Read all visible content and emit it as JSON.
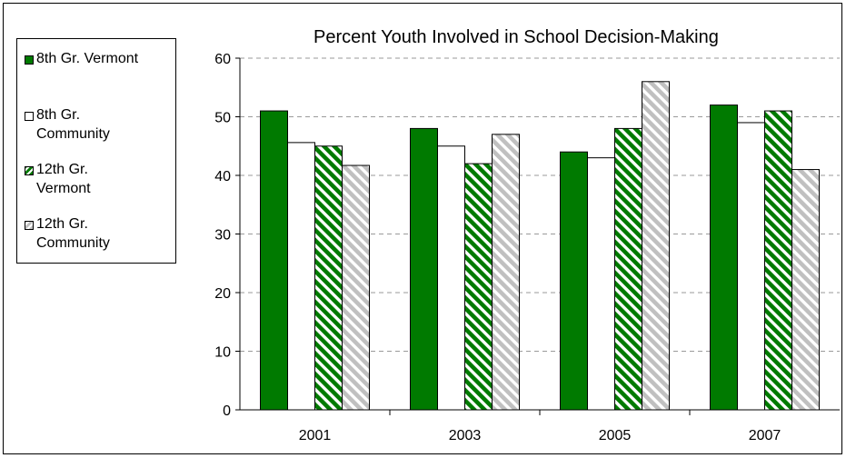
{
  "chart_data": {
    "type": "bar",
    "title": "Percent Youth Involved in School Decision-Making",
    "xlabel": "",
    "ylabel": "",
    "categories": [
      "2001",
      "2003",
      "2005",
      "2007"
    ],
    "ylim": [
      0,
      60
    ],
    "yticks": [
      0,
      10,
      20,
      30,
      40,
      50,
      60
    ],
    "grid": true,
    "legend_position": "left",
    "series": [
      {
        "name": "8th Gr. Vermont",
        "values": [
          51,
          48,
          44,
          52
        ],
        "color": "#007a00",
        "pattern": "solid"
      },
      {
        "name": "8th Gr. Community",
        "values": [
          45.6,
          45,
          43,
          49
        ],
        "color": "#ffffff",
        "pattern": "solid"
      },
      {
        "name": "12th Gr. Vermont",
        "values": [
          45,
          42,
          48,
          51
        ],
        "color": "#007a00",
        "pattern": "diagonal-stripes"
      },
      {
        "name": "12th Gr. Community",
        "values": [
          41.7,
          47,
          56,
          41
        ],
        "color": "#c0c0c0",
        "pattern": "diagonal-stripes"
      }
    ]
  }
}
